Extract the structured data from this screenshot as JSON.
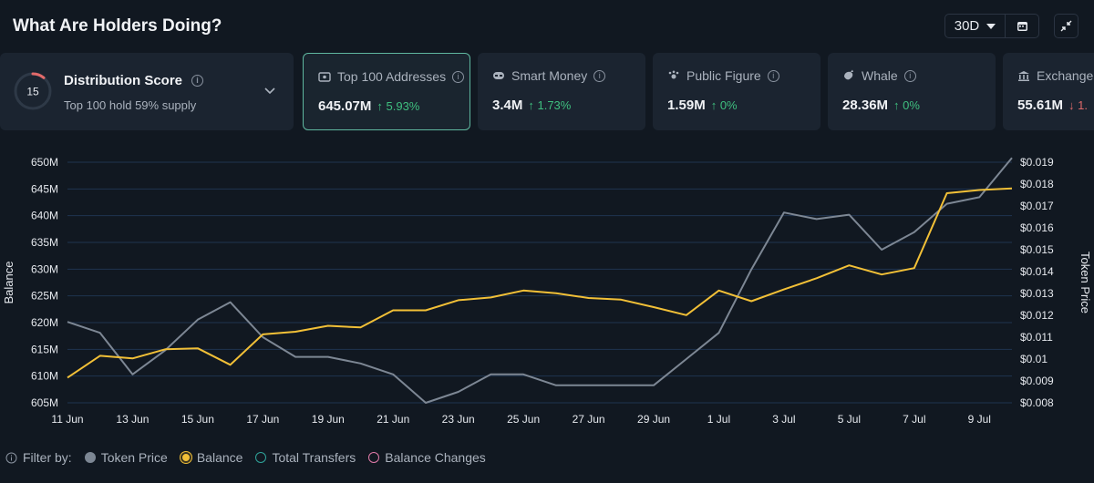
{
  "header": {
    "title": "What Are Holders Doing?",
    "range": "30D"
  },
  "distribution": {
    "score": "15",
    "title": "Distribution Score",
    "subtitle": "Top 100 hold 59% supply"
  },
  "cards": [
    {
      "label": "Top 100 Addresses",
      "value": "645.07M",
      "change": "5.93%",
      "direction": "up",
      "icon": "wallet-icon"
    },
    {
      "label": "Smart Money",
      "value": "3.4M",
      "change": "1.73%",
      "direction": "up",
      "icon": "smart-money-icon"
    },
    {
      "label": "Public Figure",
      "value": "1.59M",
      "change": "0%",
      "direction": "up",
      "icon": "public-figure-icon"
    },
    {
      "label": "Whale",
      "value": "28.36M",
      "change": "0%",
      "direction": "up",
      "icon": "whale-icon"
    },
    {
      "label": "Exchange",
      "value": "55.61M",
      "change": "1.",
      "direction": "down",
      "icon": "exchange-icon"
    }
  ],
  "legend": {
    "filter_label": "Filter by:",
    "items": [
      {
        "label": "Token Price",
        "color": "#7d8794",
        "filled": true
      },
      {
        "label": "Balance",
        "color": "#f2c037",
        "filled": true
      },
      {
        "label": "Total Transfers",
        "color": "#2fa39a",
        "filled": false
      },
      {
        "label": "Balance Changes",
        "color": "#e07aa8",
        "filled": false
      }
    ]
  },
  "chart_data": {
    "type": "line",
    "ylabel": "Balance",
    "y2label": "Token Price",
    "x_ticks": [
      "11 Jun",
      "13 Jun",
      "15 Jun",
      "17 Jun",
      "19 Jun",
      "21 Jun",
      "23 Jun",
      "25 Jun",
      "27 Jun",
      "29 Jun",
      "1 Jul",
      "3 Jul",
      "5 Jul",
      "7 Jul",
      "9 Jul"
    ],
    "y_ticks": [
      "605M",
      "610M",
      "615M",
      "620M",
      "625M",
      "630M",
      "635M",
      "640M",
      "645M",
      "650M"
    ],
    "y2_ticks": [
      "$0.008",
      "$0.009",
      "$0.01",
      "$0.011",
      "$0.012",
      "$0.013",
      "$0.014",
      "$0.015",
      "$0.016",
      "$0.017",
      "$0.018",
      "$0.019"
    ],
    "ylim": [
      605,
      650
    ],
    "y2lim": [
      0.008,
      0.019
    ],
    "x": [
      "11 Jun",
      "12 Jun",
      "13 Jun",
      "14 Jun",
      "15 Jun",
      "16 Jun",
      "17 Jun",
      "18 Jun",
      "19 Jun",
      "20 Jun",
      "21 Jun",
      "22 Jun",
      "23 Jun",
      "24 Jun",
      "25 Jun",
      "26 Jun",
      "27 Jun",
      "28 Jun",
      "29 Jun",
      "30 Jun",
      "1 Jul",
      "2 Jul",
      "3 Jul",
      "4 Jul",
      "5 Jul",
      "6 Jul",
      "7 Jul",
      "8 Jul",
      "9 Jul",
      "10 Jul"
    ],
    "series": [
      {
        "name": "Balance",
        "axis": "left",
        "color": "#f2c037",
        "values": [
          609.7,
          613.8,
          613.3,
          615.0,
          615.2,
          612.1,
          617.8,
          618.3,
          619.4,
          619.1,
          622.3,
          622.3,
          624.2,
          624.7,
          626.0,
          625.5,
          624.6,
          624.3,
          622.9,
          621.4,
          626.0,
          624.0,
          626.2,
          628.3,
          630.7,
          629.0,
          630.2,
          644.2,
          644.8,
          645.1
        ]
      },
      {
        "name": "Token Price",
        "axis": "right",
        "color": "#7d8794",
        "values": [
          0.0117,
          0.0112,
          0.0093,
          0.0104,
          0.0118,
          0.0126,
          0.011,
          0.0101,
          0.0101,
          0.0098,
          0.0093,
          0.008,
          0.0085,
          0.0093,
          0.0093,
          0.0088,
          0.0088,
          0.0088,
          0.0088,
          0.01,
          0.0112,
          0.0141,
          0.0167,
          0.0164,
          0.0166,
          0.015,
          0.0158,
          0.0171,
          0.0174,
          0.0192
        ]
      }
    ],
    "grid": true
  }
}
